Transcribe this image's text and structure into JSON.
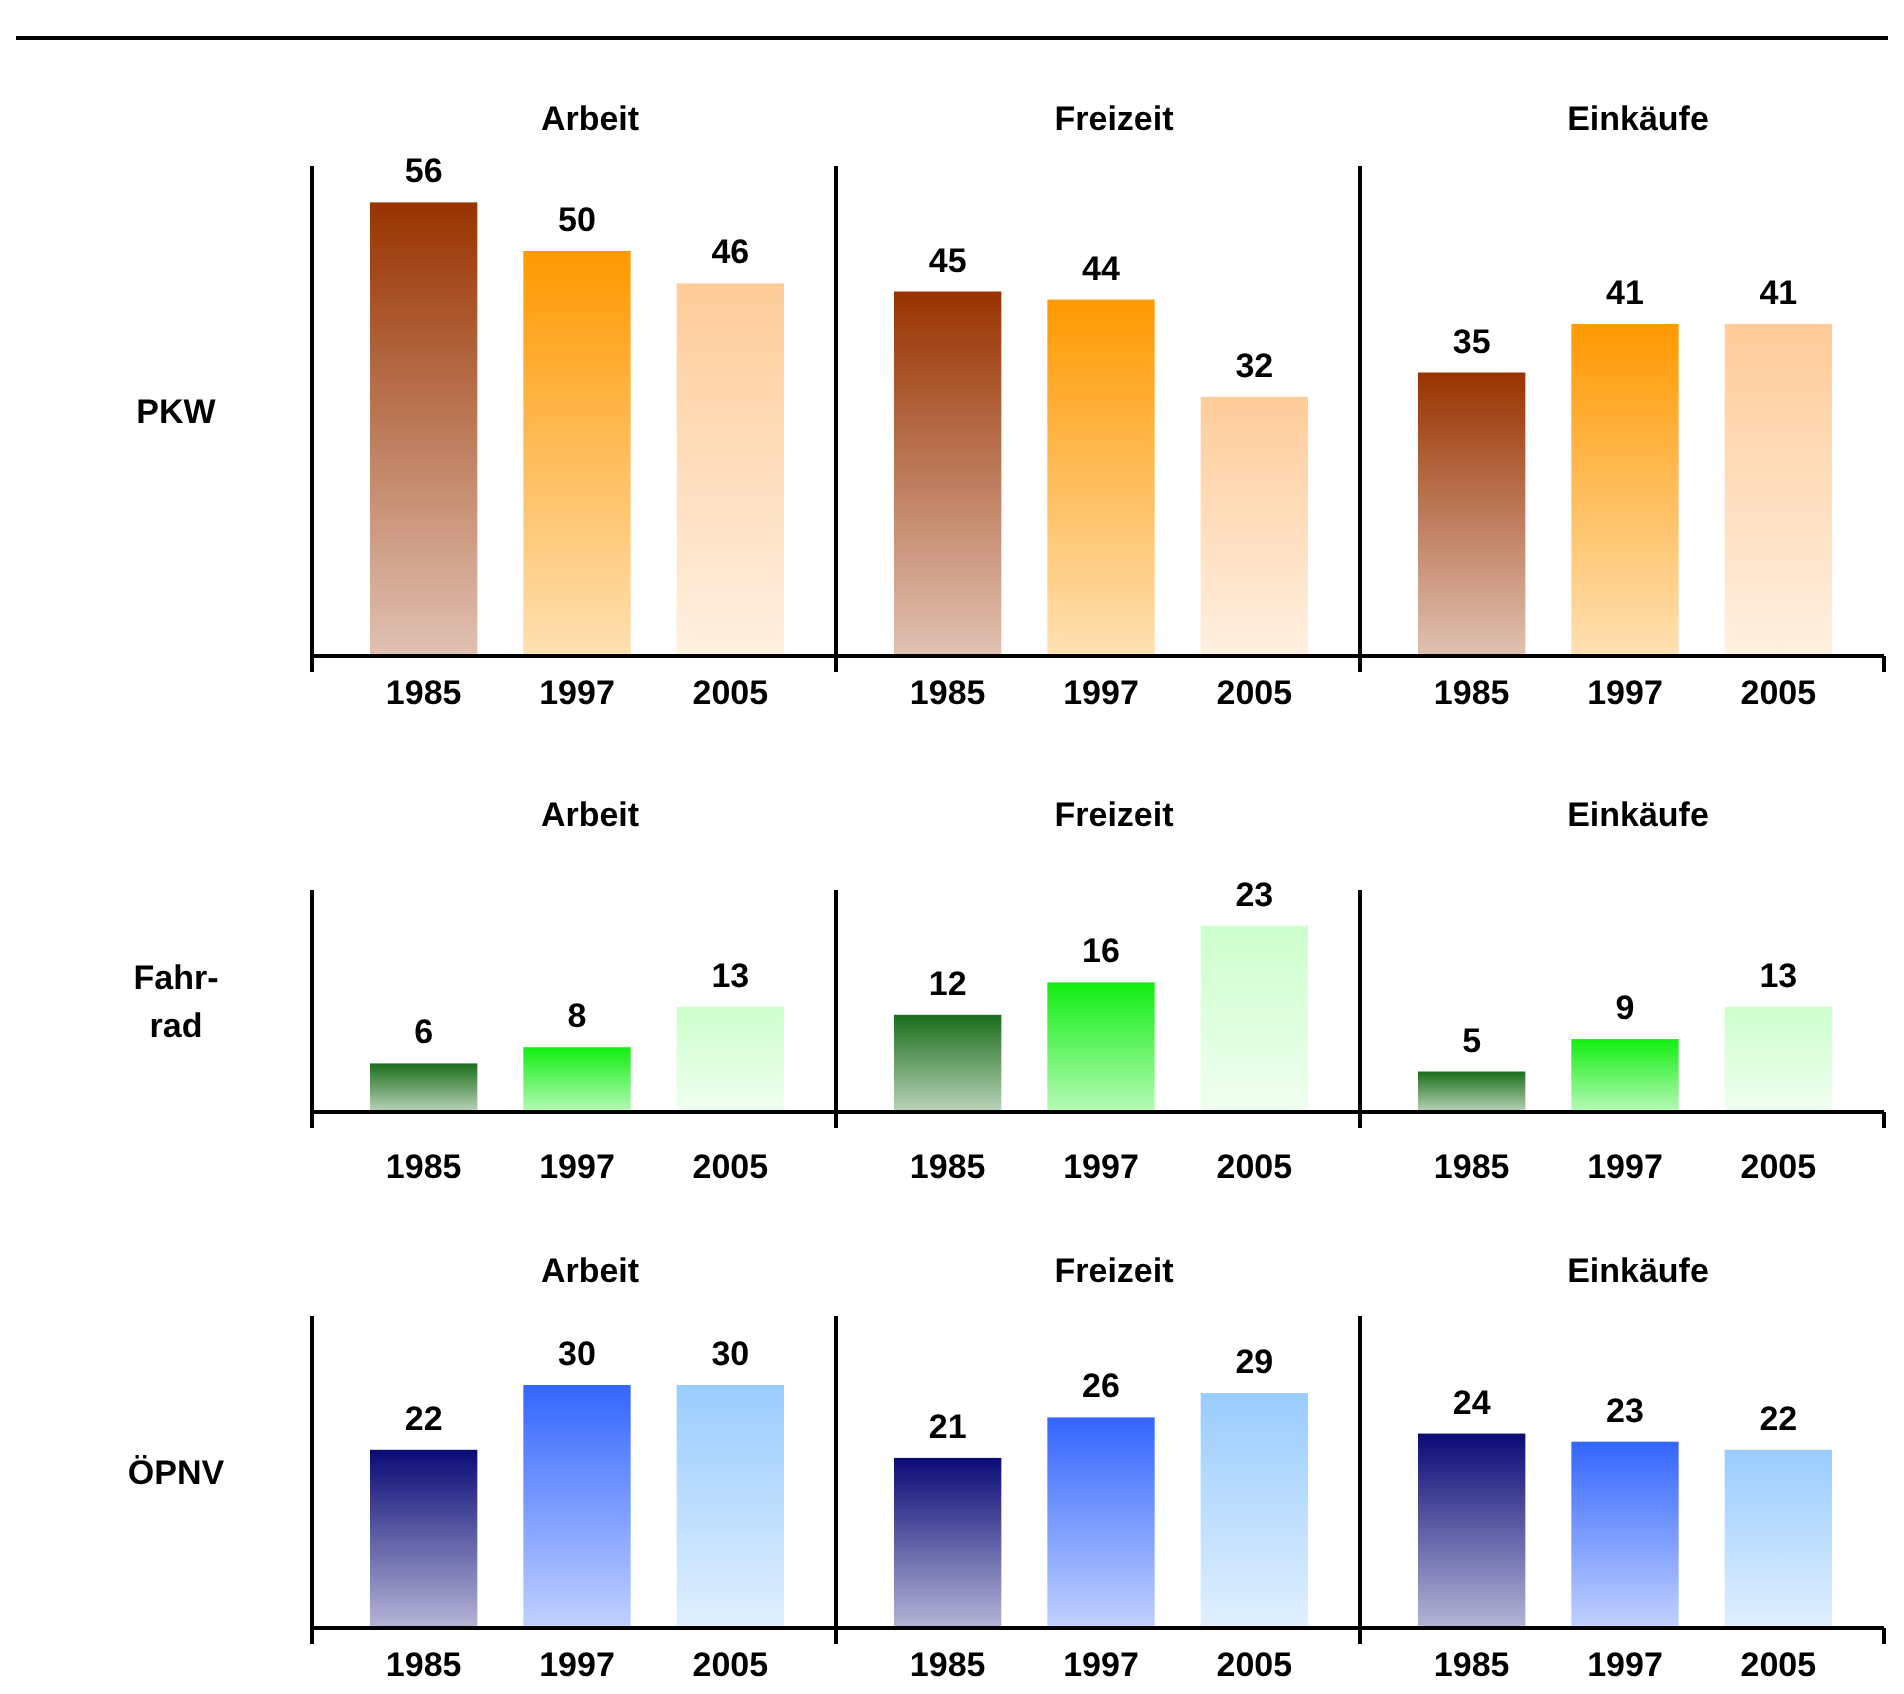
{
  "chart_data": [
    {
      "type": "bar",
      "title": "Arbeit",
      "ylabel": "PKW",
      "categories": [
        "1985",
        "1997",
        "2005"
      ],
      "values": [
        56,
        50,
        46
      ],
      "colors": [
        "#993300",
        "#ff9900",
        "#ffcc99"
      ],
      "data_labels": true
    },
    {
      "type": "bar",
      "title": "Freizeit",
      "categories": [
        "1985",
        "1997",
        "2005"
      ],
      "values": [
        45,
        44,
        32
      ],
      "colors": [
        "#993300",
        "#ff9900",
        "#ffcc99"
      ],
      "data_labels": true
    },
    {
      "type": "bar",
      "title": "Einkäufe",
      "categories": [
        "1985",
        "1997",
        "2005"
      ],
      "values": [
        35,
        41,
        41
      ],
      "colors": [
        "#993300",
        "#ff9900",
        "#ffcc99"
      ],
      "data_labels": true
    },
    {
      "type": "bar",
      "title": "Arbeit",
      "ylabel": "Fahr-rad",
      "categories": [
        "1985",
        "1997",
        "2005"
      ],
      "values": [
        6,
        8,
        13
      ],
      "colors": [
        "#1a6e1a",
        "#11ee11",
        "#ccffcc"
      ],
      "data_labels": true
    },
    {
      "type": "bar",
      "title": "Freizeit",
      "categories": [
        "1985",
        "1997",
        "2005"
      ],
      "values": [
        12,
        16,
        23
      ],
      "colors": [
        "#1a6e1a",
        "#11ee11",
        "#ccffcc"
      ],
      "data_labels": true
    },
    {
      "type": "bar",
      "title": "Einkäufe",
      "categories": [
        "1985",
        "1997",
        "2005"
      ],
      "values": [
        5,
        9,
        13
      ],
      "colors": [
        "#1a6e1a",
        "#11ee11",
        "#ccffcc"
      ],
      "data_labels": true
    },
    {
      "type": "bar",
      "title": "Arbeit",
      "ylabel": "ÖPNV",
      "categories": [
        "1985",
        "1997",
        "2005"
      ],
      "values": [
        22,
        30,
        30
      ],
      "colors": [
        "#0a0a77",
        "#3366ff",
        "#99ccff"
      ],
      "data_labels": true
    },
    {
      "type": "bar",
      "title": "Freizeit",
      "categories": [
        "1985",
        "1997",
        "2005"
      ],
      "values": [
        21,
        26,
        29
      ],
      "colors": [
        "#0a0a77",
        "#3366ff",
        "#99ccff"
      ],
      "data_labels": true
    },
    {
      "type": "bar",
      "title": "Einkäufe",
      "categories": [
        "1985",
        "1997",
        "2005"
      ],
      "values": [
        24,
        23,
        22
      ],
      "colors": [
        "#0a0a77",
        "#3366ff",
        "#99ccff"
      ],
      "data_labels": true
    }
  ]
}
